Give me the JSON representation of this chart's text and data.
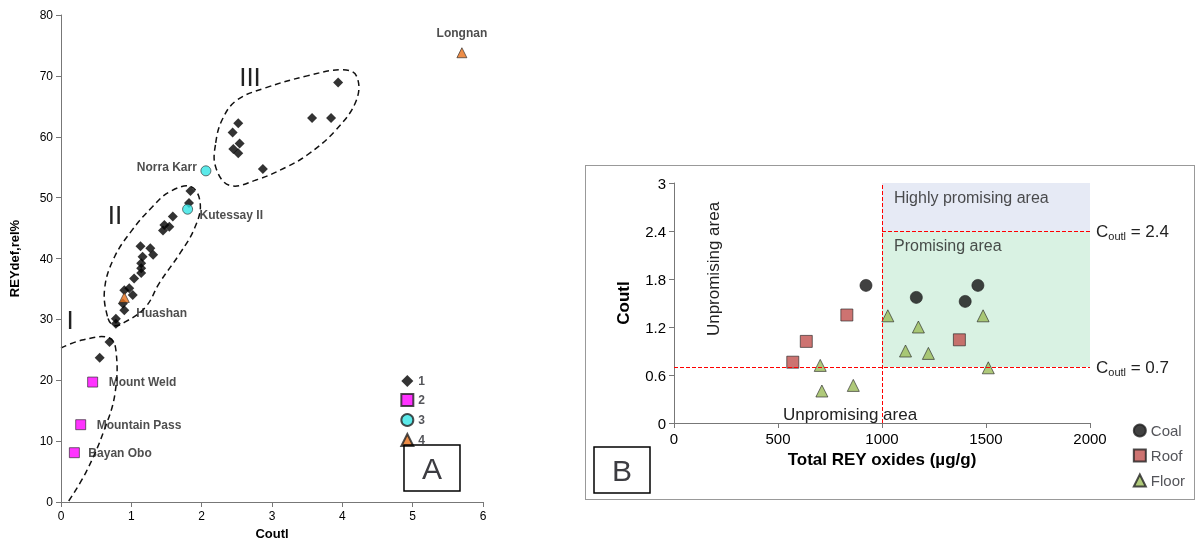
{
  "chart_data": [
    {
      "type": "scatter",
      "xlabel": "Coutl",
      "ylabel": "REYdef,rel%",
      "xlim": [
        0,
        6
      ],
      "xticks": [
        0,
        1,
        2,
        3,
        4,
        5,
        6
      ],
      "ylim": [
        0,
        80
      ],
      "yticks": [
        0,
        10,
        20,
        30,
        40,
        50,
        60,
        70,
        80
      ],
      "legend": "bottom right",
      "series": [
        {
          "name": "1",
          "color": "#000000",
          "marker": "diamond",
          "x": [
            3.94,
            3.57,
            3.84,
            2.52,
            2.44,
            2.54,
            2.45,
            2.52,
            2.87,
            1.84,
            1.82,
            1.59,
            1.47,
            1.54,
            1.45,
            1.13,
            1.27,
            1.31,
            1.16,
            1.14,
            1.14,
            1.14,
            1.04,
            0.97,
            0.9,
            1.02,
            0.88,
            0.9,
            0.78,
            0.78,
            0.69,
            0.55
          ],
          "values": [
            68.9,
            63.1,
            63.1,
            62.2,
            60.7,
            58.9,
            58.0,
            57.3,
            54.7,
            51.1,
            49.1,
            46.9,
            45.5,
            45.2,
            44.6,
            42.0,
            41.7,
            40.6,
            40.3,
            39.2,
            38.4,
            37.6,
            36.7,
            35.1,
            34.8,
            34.0,
            32.6,
            31.5,
            30.1,
            29.3,
            26.3,
            23.7
          ]
        },
        {
          "name": "2",
          "color": "#ff00ff",
          "marker": "square",
          "x": [
            0.45,
            0.28,
            0.19
          ],
          "values": [
            19.7,
            12.7,
            8.1
          ]
        },
        {
          "name": "3",
          "color": "#33e5e5",
          "marker": "circle",
          "x": [
            2.06,
            1.8
          ],
          "values": [
            54.4,
            48.1
          ]
        },
        {
          "name": "4",
          "color": "#e8701a",
          "marker": "triangle",
          "x": [
            5.7,
            0.9
          ],
          "values": [
            73.8,
            33.6
          ]
        }
      ],
      "annotations": [
        "A",
        {
          "text": "Longnan",
          "x": 5.7,
          "y": 73.8
        },
        {
          "text": "Norra Karr",
          "x": 2.06,
          "y": 54.4
        },
        {
          "text": "Kutessay II",
          "x": 1.8,
          "y": 48.1
        },
        {
          "text": "Huashan",
          "x": 0.9,
          "y": 33.6
        },
        {
          "text": "Mount Weld",
          "x": 0.45,
          "y": 19.7
        },
        {
          "text": "Mountain Pass",
          "x": 0.28,
          "y": 12.7
        },
        {
          "text": "Bayan Obo",
          "x": 0.19,
          "y": 8.1
        },
        "I",
        "II",
        "III"
      ]
    },
    {
      "type": "scatter",
      "xlabel": "Total REY oxides (µg/g)",
      "ylabel": "Coutl",
      "xlim": [
        0,
        2000
      ],
      "xticks": [
        0,
        500,
        1000,
        1500,
        2000
      ],
      "ylim": [
        0,
        3
      ],
      "yticks": [
        0,
        0.6,
        1.2,
        1.8,
        2.4,
        3
      ],
      "legend": "bottom right",
      "series": [
        {
          "name": "Coal",
          "color": "#111111",
          "marker": "circle",
          "x": [
            923,
            1165,
            1400,
            1461
          ],
          "values": [
            1.72,
            1.57,
            1.52,
            1.72
          ]
        },
        {
          "name": "Roof",
          "color": "#c0504d",
          "marker": "square",
          "x": [
            571,
            636,
            831,
            1372
          ],
          "values": [
            0.76,
            1.02,
            1.35,
            1.04
          ]
        },
        {
          "name": "Floor",
          "color": "#9bbb59",
          "marker": "triangle",
          "x": [
            703,
            711,
            862,
            1028,
            1175,
            1113,
            1223,
            1486,
            1511
          ],
          "values": [
            0.72,
            0.4,
            0.47,
            1.34,
            1.2,
            0.9,
            0.87,
            1.34,
            0.69
          ]
        }
      ],
      "ref_lines": [
        {
          "axis": "y",
          "value": 2.4,
          "label": "C$_{outl}$ = 2.4",
          "color": "#ff0000",
          "line_style": "dashed"
        },
        {
          "axis": "y",
          "value": 0.7,
          "label": "C$_{outl}$ = 0.7",
          "color": "#ff0000",
          "line_style": "dashed"
        },
        {
          "axis": "x",
          "value": 1000,
          "label": null,
          "color": "#ff0000",
          "line_style": "dashed"
        }
      ],
      "bands": [
        {
          "axis": "y",
          "from": 2.4,
          "to": 3,
          "label": "Highly promising area",
          "color": "#e6eaf5"
        },
        {
          "axis": "y",
          "from": 0.7,
          "to": 2.4,
          "label": "Promising area",
          "color": "#d9f2e3"
        }
      ],
      "annotations": [
        "B",
        "Unpromising area",
        "Unpromising area"
      ]
    }
  ]
}
